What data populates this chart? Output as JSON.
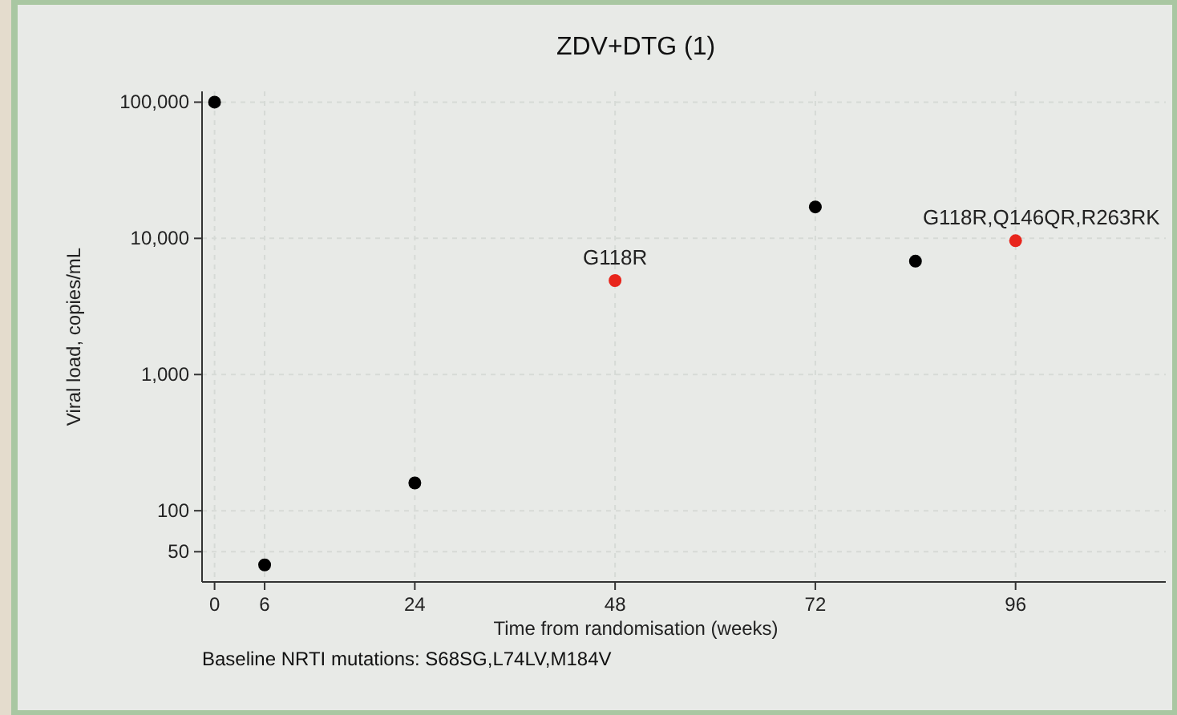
{
  "chart_data": {
    "type": "scatter",
    "title": "ZDV+DTG (1)",
    "xlabel": "Time from randomisation (weeks)",
    "ylabel": "Viral load, copies/mL",
    "series": [
      {
        "color": "#000000",
        "x": [
          0,
          6,
          24,
          72,
          84
        ],
        "values": [
          100000,
          40,
          160,
          17000,
          6800
        ]
      },
      {
        "color": "#e8251c",
        "x": [
          48,
          96
        ],
        "values": [
          4900,
          9600
        ]
      }
    ],
    "xlim": [
      -1.5,
      114
    ],
    "xticks": [
      0,
      6,
      24,
      48,
      72,
      96
    ],
    "ylim": [
      30,
      120000
    ],
    "yticks": [
      {
        "value": 50,
        "label": "50"
      },
      {
        "value": 100,
        "label": "100"
      },
      {
        "value": 1000,
        "label": "1,000"
      },
      {
        "value": 10000,
        "label": "10,000"
      },
      {
        "value": 100000,
        "label": "100,000"
      }
    ],
    "log": "y",
    "grid": true,
    "marker": "circle",
    "annotations": [
      {
        "text": "G118R",
        "x": 48,
        "y": 4900
      },
      {
        "text": "G118R,Q146QR,R263RK",
        "x": 96,
        "y": 9600
      },
      "Baseline NRTI mutations: S68SG,L74LV,M184V"
    ]
  }
}
